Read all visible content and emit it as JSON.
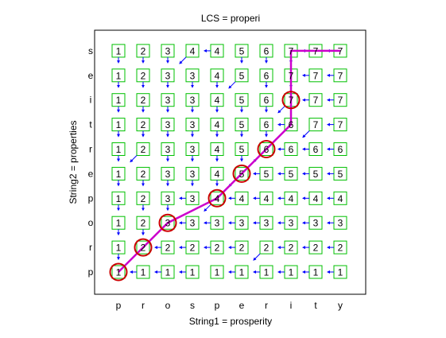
{
  "title": "LCS = properi",
  "xlabel": "String1 = prosperity",
  "ylabel": "String2 = properties",
  "string1": [
    "p",
    "r",
    "o",
    "s",
    "p",
    "e",
    "r",
    "i",
    "t",
    "y"
  ],
  "string2_bottom_to_top": [
    "p",
    "r",
    "o",
    "p",
    "e",
    "r",
    "t",
    "i",
    "e",
    "s"
  ],
  "colors": {
    "cell_border": "#00c000",
    "arrow": "#0000ff",
    "path": "#cc00cc",
    "circle": "#cc0000",
    "text": "#000000"
  },
  "cells": [
    {
      "row": 0,
      "values": [
        1,
        1,
        1,
        1,
        1,
        1,
        1,
        1,
        1,
        1
      ],
      "arrows": [
        "none",
        "left",
        "left",
        "left",
        "none",
        "left",
        "left",
        "left",
        "left",
        "left"
      ]
    },
    {
      "row": 1,
      "values": [
        1,
        2,
        2,
        2,
        2,
        2,
        2,
        2,
        2,
        2
      ],
      "arrows": [
        "up",
        "none",
        "left",
        "left",
        "left",
        "left",
        "diag",
        "left",
        "left",
        "left"
      ]
    },
    {
      "row": 2,
      "values": [
        1,
        2,
        3,
        3,
        3,
        3,
        3,
        3,
        3,
        3
      ],
      "arrows": [
        "up",
        "up",
        "none",
        "left",
        "left",
        "left",
        "left",
        "left",
        "left",
        "left"
      ]
    },
    {
      "row": 3,
      "values": [
        1,
        2,
        3,
        3,
        4,
        4,
        4,
        4,
        4,
        4
      ],
      "arrows": [
        "up",
        "up",
        "up",
        "left",
        "diag",
        "left",
        "left",
        "left",
        "left",
        "left"
      ]
    },
    {
      "row": 4,
      "values": [
        1,
        2,
        3,
        3,
        4,
        5,
        5,
        5,
        5,
        5
      ],
      "arrows": [
        "up",
        "up",
        "up",
        "up",
        "up",
        "diag",
        "left",
        "left",
        "left",
        "left"
      ]
    },
    {
      "row": 5,
      "values": [
        1,
        2,
        3,
        3,
        4,
        5,
        6,
        6,
        6,
        6
      ],
      "arrows": [
        "up",
        "diag",
        "up",
        "up",
        "up",
        "up",
        "diag",
        "left",
        "left",
        "left"
      ]
    },
    {
      "row": 6,
      "values": [
        1,
        2,
        3,
        3,
        4,
        5,
        6,
        6,
        7,
        7
      ],
      "arrows": [
        "up",
        "up",
        "up",
        "up",
        "up",
        "up",
        "up",
        "left",
        "diag",
        "left"
      ]
    },
    {
      "row": 7,
      "values": [
        1,
        2,
        3,
        3,
        4,
        5,
        6,
        7,
        7,
        7
      ],
      "arrows": [
        "up",
        "up",
        "up",
        "up",
        "up",
        "up",
        "up",
        "diag",
        "left",
        "left"
      ]
    },
    {
      "row": 8,
      "values": [
        1,
        2,
        3,
        3,
        4,
        5,
        6,
        7,
        7,
        7
      ],
      "arrows": [
        "up",
        "up",
        "up",
        "up",
        "up",
        "diag",
        "up",
        "up",
        "left",
        "left"
      ]
    },
    {
      "row": 9,
      "values": [
        1,
        2,
        3,
        4,
        4,
        5,
        6,
        7,
        7,
        7
      ],
      "arrows": [
        "up",
        "up",
        "up",
        "diag",
        "left",
        "up",
        "up",
        "up",
        "left",
        "left"
      ]
    }
  ],
  "path_cells": [
    [
      0,
      0
    ],
    [
      1,
      1
    ],
    [
      2,
      2
    ],
    [
      3,
      4
    ],
    [
      4,
      5
    ],
    [
      5,
      6
    ],
    [
      6,
      7
    ],
    [
      9,
      7
    ],
    [
      9,
      9
    ]
  ],
  "circled_cells": [
    [
      0,
      0
    ],
    [
      1,
      1
    ],
    [
      2,
      2
    ],
    [
      3,
      4
    ],
    [
      4,
      5
    ],
    [
      5,
      6
    ],
    [
      7,
      7
    ]
  ]
}
